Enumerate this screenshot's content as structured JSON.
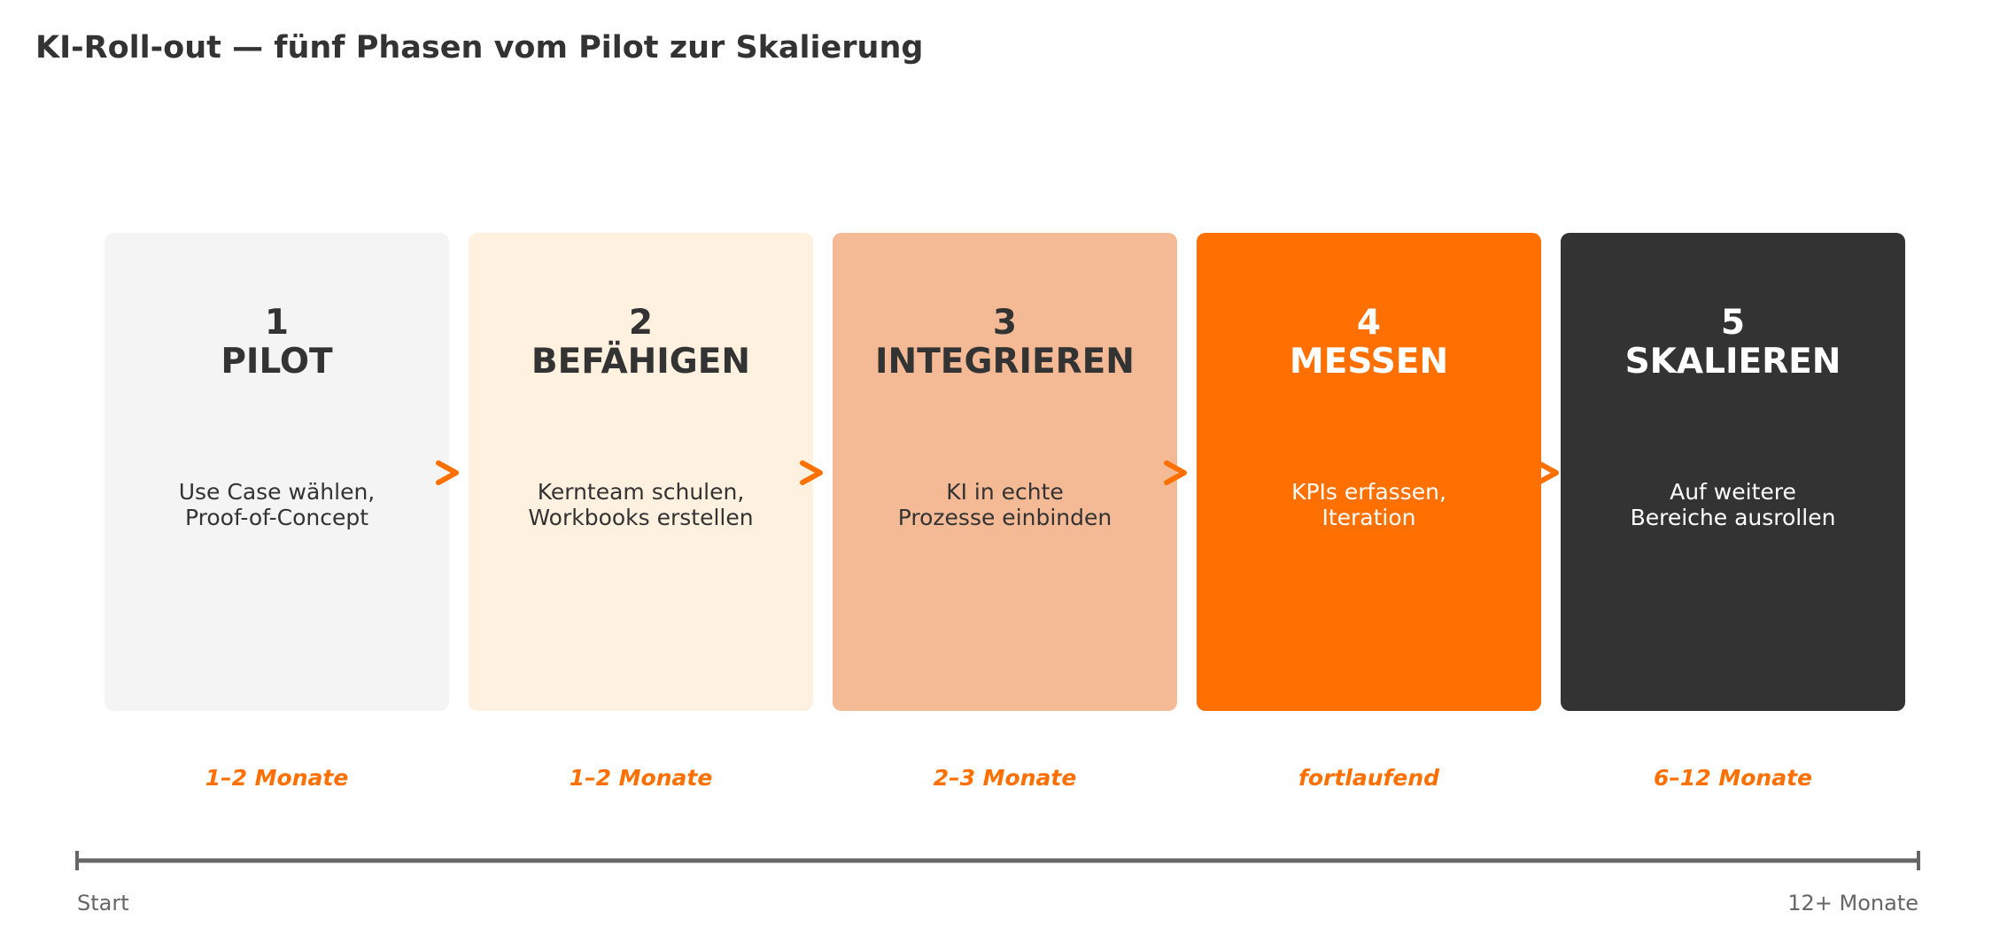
{
  "title": "KI-Roll-out — fünf Phasen vom Pilot zur Skalierung",
  "phases": [
    {
      "number": "1",
      "name": "PILOT",
      "desc_line1": "Use Case wählen,",
      "desc_line2": "Proof-of-Concept",
      "duration": "1–2 Monate",
      "color": "#f4f4f4"
    },
    {
      "number": "2",
      "name": "BEFÄHIGEN",
      "desc_line1": "Kernteam schulen,",
      "desc_line2": "Workbooks erstellen",
      "duration": "1–2 Monate",
      "color": "#fff1e0"
    },
    {
      "number": "3",
      "name": "INTEGRIEREN",
      "desc_line1": "KI in echte",
      "desc_line2": "Prozesse einbinden",
      "duration": "2–3 Monate",
      "color": "#f4b995"
    },
    {
      "number": "4",
      "name": "MESSEN",
      "desc_line1": "KPIs erfassen,",
      "desc_line2": "Iteration",
      "duration": "fortlaufend",
      "color": "#ff7000"
    },
    {
      "number": "5",
      "name": "SKALIEREN",
      "desc_line1": "Auf weitere",
      "desc_line2": "Bereiche ausrollen",
      "duration": "6–12 Monate",
      "color": "#333333"
    }
  ],
  "accent_color": "#ff7000",
  "timeline": {
    "start_label": "Start",
    "end_label": "12+ Monate"
  }
}
